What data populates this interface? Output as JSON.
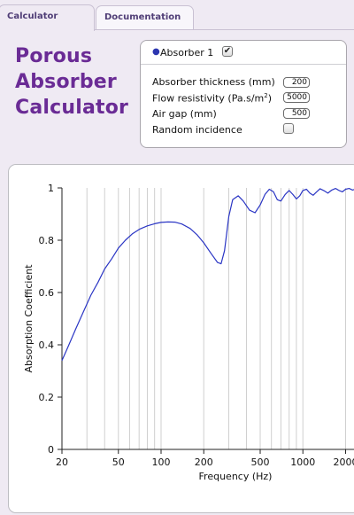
{
  "tabs": [
    {
      "label": "Calculator"
    },
    {
      "label": "Documentation"
    }
  ],
  "title_lines": [
    "Porous",
    "Absorber",
    "Calculator"
  ],
  "panel": {
    "absorber_label": "Absorber 1",
    "absorber_enabled": true,
    "thickness_label": "Absorber thickness (mm)",
    "thickness_value": "200",
    "resistivity_label": "Flow resistivity (Pa.s/m",
    "resistivity_sup": "2",
    "resistivity_label_end": ")",
    "resistivity_value": "5000",
    "airgap_label": "Air gap (mm)",
    "airgap_value": "500",
    "random_label": "Random incidence",
    "random_checked": false
  },
  "colors": {
    "title": "#6a2b95",
    "tab_text": "#4f3d76",
    "curve": "#2a35c4",
    "grid": "#cfcfcf"
  },
  "chart_data": {
    "type": "line",
    "title": "",
    "xlabel": "Frequency (Hz)",
    "ylabel": "Absorption Coefficient",
    "x_scale": "log",
    "xlim": [
      20,
      2500
    ],
    "ylim": [
      0,
      1
    ],
    "x_ticks": [
      {
        "value": 20,
        "label": "20"
      },
      {
        "value": 50,
        "label": "50"
      },
      {
        "value": 100,
        "label": "100"
      },
      {
        "value": 200,
        "label": "200"
      },
      {
        "value": 500,
        "label": "500"
      },
      {
        "value": 1000,
        "label": "1000"
      },
      {
        "value": 2000,
        "label": "2000"
      }
    ],
    "y_ticks": [
      {
        "value": 0,
        "label": "0"
      },
      {
        "value": 0.2,
        "label": "0.2"
      },
      {
        "value": 0.4,
        "label": "0.4"
      },
      {
        "value": 0.6,
        "label": "0.6"
      },
      {
        "value": 0.8,
        "label": "0.8"
      },
      {
        "value": 1,
        "label": "1"
      }
    ],
    "grid": true,
    "series": [
      {
        "x": [
          20,
          22,
          25,
          28,
          32,
          36,
          40,
          45,
          50,
          56,
          63,
          71,
          80,
          90,
          100,
          112,
          125,
          140,
          160,
          180,
          200,
          225,
          250,
          265,
          280,
          300,
          320,
          350,
          380,
          420,
          460,
          500,
          540,
          580,
          620,
          660,
          700,
          750,
          800,
          850,
          900,
          950,
          1000,
          1060,
          1120,
          1180,
          1250,
          1320,
          1400,
          1500,
          1600,
          1700,
          1800,
          1900,
          2000,
          2120,
          2240,
          2360,
          2500
        ],
        "y": [
          0.34,
          0.39,
          0.46,
          0.52,
          0.59,
          0.64,
          0.69,
          0.73,
          0.77,
          0.8,
          0.825,
          0.843,
          0.855,
          0.863,
          0.868,
          0.87,
          0.869,
          0.862,
          0.845,
          0.82,
          0.79,
          0.75,
          0.715,
          0.71,
          0.76,
          0.89,
          0.955,
          0.97,
          0.95,
          0.915,
          0.905,
          0.935,
          0.975,
          0.995,
          0.985,
          0.955,
          0.95,
          0.975,
          0.99,
          0.975,
          0.958,
          0.97,
          0.99,
          0.995,
          0.98,
          0.972,
          0.985,
          0.997,
          0.99,
          0.98,
          0.992,
          0.998,
          0.99,
          0.985,
          0.995,
          0.998,
          0.992,
          0.996,
          0.997
        ]
      }
    ]
  }
}
